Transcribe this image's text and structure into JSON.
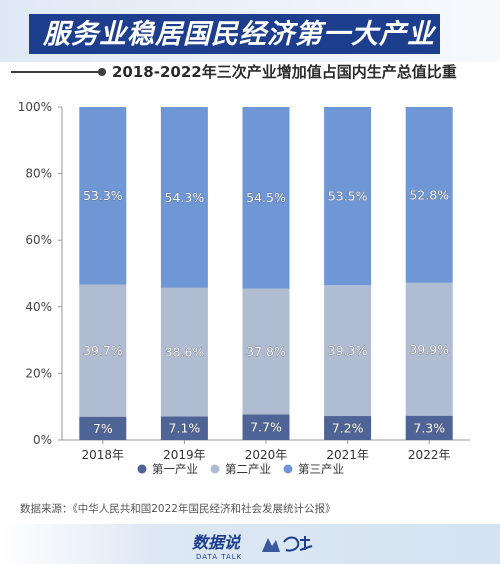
{
  "header": {
    "title": "服务业稳居国民经济第一大产业",
    "subtitle": "2018-2022年三次产业增加值占国内生产总值比重"
  },
  "chart_data": {
    "type": "bar",
    "stacked": true,
    "categories": [
      "2018年",
      "2019年",
      "2020年",
      "2021年",
      "2022年"
    ],
    "series": [
      {
        "name": "第一产业",
        "values": [
          7,
          7.1,
          7.7,
          7.2,
          7.3
        ],
        "labels": [
          "7%",
          "7.1%",
          "7.7%",
          "7.2%",
          "7.3%"
        ],
        "color": "#4f6496"
      },
      {
        "name": "第二产业",
        "values": [
          39.7,
          38.6,
          37.8,
          39.3,
          39.9
        ],
        "labels": [
          "39.7%",
          "38.6%",
          "37.8%",
          "39.3%",
          "39.9%"
        ],
        "color": "#b0bcd2"
      },
      {
        "name": "第三产业",
        "values": [
          53.3,
          54.3,
          54.5,
          53.5,
          52.8
        ],
        "labels": [
          "53.3%",
          "54.3%",
          "54.5%",
          "53.5%",
          "52.8%"
        ],
        "color": "#6f97d6"
      }
    ],
    "y_ticks": [
      "0%",
      "20%",
      "40%",
      "60%",
      "80%",
      "100%"
    ],
    "ylim": [
      0,
      100
    ],
    "legend_position": "bottom",
    "grid": false
  },
  "source": {
    "text": "数据来源：《中华人民共和国2022年国民经济和社会发展统计公报》"
  },
  "logos": {
    "main": "数据说",
    "main_sub": "DATA TALK"
  }
}
